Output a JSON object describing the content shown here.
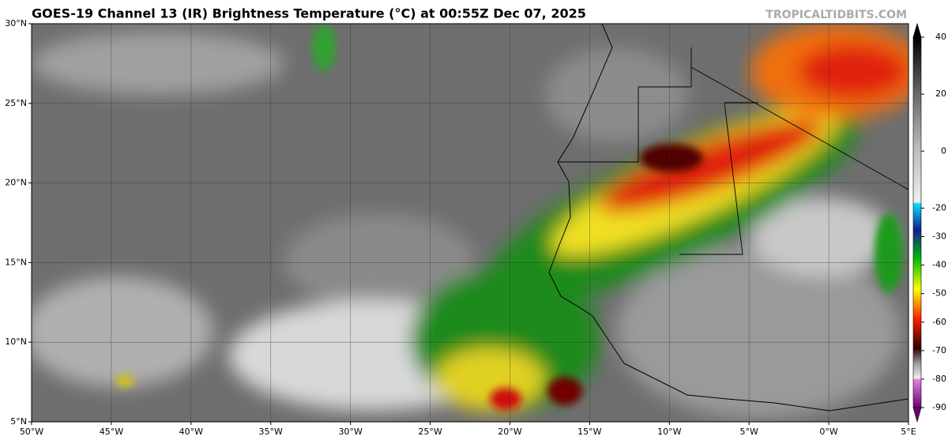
{
  "header": {
    "title": "GOES-19 Channel 13 (IR) Brightness Temperature (°C) at 00:55Z Dec 07, 2025",
    "watermark": "TROPICALTIDBITS.COM"
  },
  "map": {
    "lon_lim": [
      -50,
      5
    ],
    "lat_lim": [
      5,
      30
    ],
    "lon_ticks": [
      {
        "value": -50,
        "label": "50°W"
      },
      {
        "value": -45,
        "label": "45°W"
      },
      {
        "value": -40,
        "label": "40°W"
      },
      {
        "value": -35,
        "label": "35°W"
      },
      {
        "value": -30,
        "label": "30°W"
      },
      {
        "value": -25,
        "label": "25°W"
      },
      {
        "value": -20,
        "label": "20°W"
      },
      {
        "value": -15,
        "label": "15°W"
      },
      {
        "value": -10,
        "label": "10°W"
      },
      {
        "value": -5,
        "label": "5°W"
      },
      {
        "value": 0,
        "label": "0°W"
      },
      {
        "value": 5,
        "label": "5°E"
      }
    ],
    "lat_ticks": [
      {
        "value": 5,
        "label": "5°N"
      },
      {
        "value": 10,
        "label": "10°N"
      },
      {
        "value": 15,
        "label": "15°N"
      },
      {
        "value": 20,
        "label": "20°N"
      },
      {
        "value": 25,
        "label": "25°N"
      },
      {
        "value": 30,
        "label": "30°N"
      }
    ]
  },
  "colorbar": {
    "lim": [
      -90,
      40
    ],
    "ticks": [
      40,
      20,
      0,
      -20,
      -30,
      -40,
      -50,
      -60,
      -70,
      -80,
      -90
    ]
  }
}
